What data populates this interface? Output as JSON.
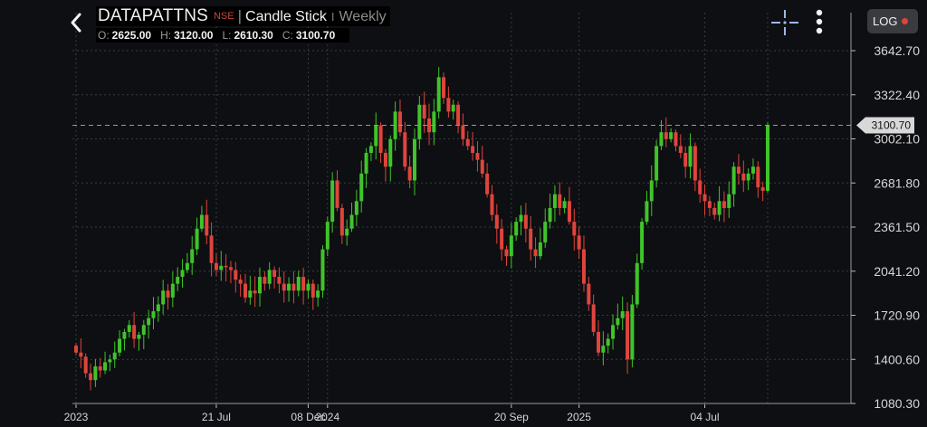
{
  "header": {
    "symbol": "DATAPATTNS",
    "exchange": "NSE",
    "separator": "|",
    "chart_type": "Candle Stick",
    "separator2": "I",
    "interval": "Weekly",
    "ohlc": {
      "o_label": "O:",
      "o_value": "2625.00",
      "h_label": "H:",
      "h_value": "3120.00",
      "l_label": "L:",
      "l_value": "2610.30",
      "c_label": "C:",
      "c_value": "3100.70"
    }
  },
  "toolbar": {
    "log_label": "LOG",
    "back_icon": "back-chevron-icon",
    "crosshair_icon": "crosshair-icon",
    "menu_icon": "more-vertical-icon"
  },
  "colors": {
    "up": "#3fc42b",
    "down": "#e0443c",
    "background": "#0e0f12",
    "grid": "#3a3b3e"
  },
  "chart_data": {
    "type": "candlestick",
    "y_ticks": [
      "3642.70",
      "3322.40",
      "3002.10",
      "2681.80",
      "2361.50",
      "2041.20",
      "1720.90",
      "1400.60",
      "1080.30"
    ],
    "ylim": [
      1080.3,
      3642.7
    ],
    "x_labels": [
      "2023",
      "21 Jul",
      "08 Dec",
      "2024",
      "20 Sep",
      "2025",
      "04 Jul"
    ],
    "x_label_weeks": [
      0,
      29,
      48,
      52,
      90,
      104,
      130
    ],
    "last_price_label": "3100.70",
    "last_price": 3100.7,
    "grid": true,
    "closes": [
      1450,
      1420,
      1300,
      1250,
      1350,
      1320,
      1380,
      1400,
      1450,
      1550,
      1600,
      1650,
      1550,
      1580,
      1650,
      1700,
      1750,
      1800,
      1900,
      1850,
      1950,
      2000,
      2050,
      2100,
      2200,
      2350,
      2450,
      2300,
      2100,
      2050,
      2080,
      2070,
      2050,
      1980,
      1950,
      1850,
      1900,
      1880,
      2000,
      1950,
      2050,
      2000,
      1950,
      1900,
      1950,
      1900,
      2000,
      1900,
      1950,
      1850,
      1900,
      2200,
      2400,
      2700,
      2500,
      2300,
      2350,
      2450,
      2550,
      2750,
      2900,
      2950,
      3100,
      2900,
      2800,
      3000,
      3200,
      3050,
      2800,
      2700,
      3000,
      3250,
      3150,
      3050,
      3200,
      3450,
      3300,
      3200,
      3250,
      3100,
      3000,
      2950,
      2900,
      2850,
      2750,
      2600,
      2450,
      2350,
      2200,
      2150,
      2300,
      2400,
      2450,
      2350,
      2200,
      2150,
      2250,
      2400,
      2500,
      2600,
      2500,
      2550,
      2400,
      2300,
      2200,
      1950,
      1800,
      1600,
      1450,
      1500,
      1550,
      1650,
      1700,
      1750,
      1400,
      1800,
      2100,
      2400,
      2550,
      2700,
      2950,
      3050,
      3000,
      3050,
      2950,
      2900,
      2800,
      2950,
      2700,
      2600,
      2550,
      2500,
      2450,
      2550,
      2500,
      2600,
      2800,
      2750,
      2700,
      2750,
      2800,
      2650,
      2625,
      3100.7
    ]
  }
}
